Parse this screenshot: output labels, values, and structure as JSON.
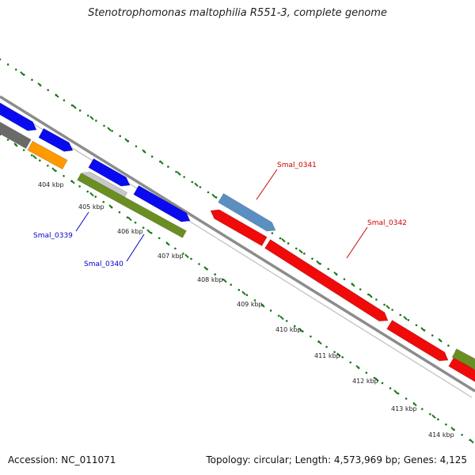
{
  "map_title": "Stenotrophomonas maltophilia R551-3, complete genome",
  "footer": {
    "accession": "Accession: NC_011071",
    "summary": "Topology: circular; Length: 4,573,969 bp; Genes: 4,125"
  },
  "ticks": [
    {
      "label": "404 kbp"
    },
    {
      "label": "405 kbp"
    },
    {
      "label": "406 kbp"
    },
    {
      "label": "407 kbp"
    },
    {
      "label": "408 kbp"
    },
    {
      "label": "409 kbp"
    },
    {
      "label": "410 kbp"
    },
    {
      "label": "411 kbp"
    },
    {
      "label": "412 kbp"
    },
    {
      "label": "413 kbp"
    },
    {
      "label": "414 kbp"
    }
  ],
  "gene_labels": [
    {
      "name": "Smal_0339",
      "color": "#0000cc"
    },
    {
      "name": "Smal_0340",
      "color": "#0000cc"
    },
    {
      "name": "Smal_0341",
      "color": "#cc0000"
    },
    {
      "name": "Smal_0342",
      "color": "#cc0000"
    }
  ],
  "colors": {
    "backbone": "#8c8c8c",
    "tick_green": "#1a7a1a",
    "gene_blue": "#0a0af0",
    "gene_steelblue": "#5b8fc2",
    "gene_red": "#f00a0a",
    "gene_olive": "#6b8e23",
    "gene_orange": "#ff9900",
    "gene_darkgray": "#6a6a6a",
    "gene_lightgray": "#c8c8c8"
  }
}
